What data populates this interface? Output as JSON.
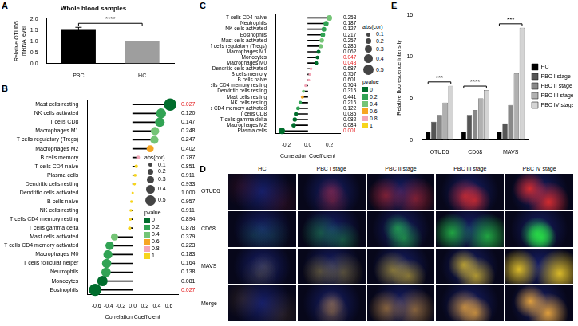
{
  "chart_data": [
    {
      "panel": "A",
      "type": "bar",
      "title": "Whole blood samples",
      "y_label": "Relative OTUD5 mRNA level",
      "categories": [
        "PBC",
        "HC"
      ],
      "values": [
        1.5,
        1.0
      ],
      "errors": [
        0.12,
        0
      ],
      "colors": [
        "#000000",
        "#9e9e9e"
      ],
      "ylim": [
        0,
        2
      ],
      "yticks": [
        {
          "value": 0,
          "label": "0.0"
        },
        {
          "value": 0.5,
          "label": "0.5"
        },
        {
          "value": 1,
          "label": "1.0"
        },
        {
          "value": 1.5,
          "label": "1.5"
        },
        {
          "value": 2,
          "label": "2.0"
        }
      ],
      "grid": false,
      "annotations": [
        {
          "text": "****",
          "from": "PBC",
          "to": "HC"
        }
      ]
    },
    {
      "panel": "B",
      "type": "lollipop",
      "orientation": "horizontal",
      "x_label": "Correlation Coefficient",
      "categories": [
        "Mast cells resting",
        "NK cells activated",
        "T cells CD8",
        "Macrophages M1",
        "T cells regulatory (Tregs)",
        "Macrophages M2",
        "B cells memory",
        "T cells CD4 naive",
        "Plasma cells",
        "Dendritic cells resting",
        "Dendritic cells activated",
        "B cells naive",
        "NK cells resting",
        "T cells CD4 memory resting",
        "T cells gamma delta",
        "Mast cells activated",
        "T cells CD4 memory activated",
        "Macrophages M0",
        "T cells follicular helper",
        "Neutrophils",
        "Monocytes",
        "Eosinophils"
      ],
      "values": [
        0.62,
        0.47,
        0.45,
        0.37,
        0.36,
        0.29,
        0.09,
        0.06,
        0.04,
        0.03,
        0.0,
        -0.02,
        -0.03,
        -0.04,
        -0.05,
        -0.3,
        -0.38,
        -0.41,
        -0.43,
        -0.44,
        -0.5,
        -0.62
      ],
      "colors": [
        "#006d2c",
        "#31a354",
        "#31a354",
        "#74c476",
        "#74c476",
        "#f6a623",
        "#f4a6b8",
        "#f7d51d",
        "#f7d51d",
        "#f7d51d",
        "#f7d51d",
        "#f7d51d",
        "#f7d51d",
        "#f7d51d",
        "#f7d51d",
        "#74c476",
        "#31a354",
        "#31a354",
        "#31a354",
        "#31a354",
        "#006d2c",
        "#006d2c"
      ],
      "p_value_labels": [
        "0.027",
        "0.120",
        "0.147",
        "0.248",
        "0.247",
        "0.402",
        "0.787",
        "0.851",
        "0.911",
        "0.933",
        "1.000",
        "0.957",
        "0.911",
        "0.894",
        "0.878",
        "0.379",
        "0.223",
        "0.183",
        "0.164",
        "0.138",
        "0.081",
        "0.027"
      ],
      "p_value_colors": [
        "#e41a1c",
        "#000000",
        "#000000",
        "#000000",
        "#000000",
        "#000000",
        "#000000",
        "#000000",
        "#000000",
        "#000000",
        "#000000",
        "#000000",
        "#000000",
        "#000000",
        "#000000",
        "#000000",
        "#000000",
        "#000000",
        "#000000",
        "#000000",
        "#000000",
        "#e41a1c"
      ],
      "xlim": [
        -0.75,
        0.75
      ],
      "xticks": [
        -0.6,
        -0.4,
        -0.2,
        {
          "value": 0,
          "label": "0.0"
        },
        0.2,
        0.4,
        0.6
      ],
      "grid": false,
      "size_legend": {
        "title": "abs(cor)",
        "values": [
          0.1,
          0.2,
          0.3,
          0.4,
          0.5
        ]
      },
      "color_legend": {
        "title": "pvalue",
        "values": [
          0,
          0.2,
          0.4,
          0.6,
          0.8,
          1
        ],
        "colors": [
          "#006d2c",
          "#31a354",
          "#74c476",
          "#f6a623",
          "#f4a6b8",
          "#f7d51d"
        ]
      }
    },
    {
      "panel": "C",
      "type": "lollipop",
      "orientation": "horizontal",
      "x_label": "Correlation Coefficient",
      "categories": [
        "T cells CD4 naive",
        "Neutrophils",
        "NK cells activated",
        "Eosinophils",
        "Mast cells activated",
        "T cells regulatory (Tregs)",
        "Macrophages M1",
        "Monocytes",
        "Macrophages M0",
        "Dendritic cells activated",
        "B cells memory",
        "B cells naive",
        "T cells CD4 memory resting",
        "Dendritic cells resting",
        "Mast cells resting",
        "NK cells resting",
        "T cells CD4 memory activated",
        "T cells CD8",
        "T cells gamma delta",
        "Macrophages M2",
        "Plasma cells"
      ],
      "values": [
        0.2,
        0.17,
        0.15,
        0.14,
        0.13,
        0.12,
        0.1,
        0.09,
        0.08,
        0.03,
        0.02,
        0.01,
        -0.02,
        -0.04,
        -0.05,
        -0.07,
        -0.09,
        -0.11,
        -0.12,
        -0.13,
        -0.24
      ],
      "colors": [
        "#74c476",
        "#31a354",
        "#31a354",
        "#31a354",
        "#74c476",
        "#74c476",
        "#006d2c",
        "#006d2c",
        "#006d2c",
        "#f4a6b8",
        "#f4a6b8",
        "#f4a6b8",
        "#f4a6b8",
        "#74c476",
        "#f6a623",
        "#31a354",
        "#31a354",
        "#006d2c",
        "#006d2c",
        "#006d2c",
        "#006d2c"
      ],
      "p_value_labels": [
        "0.253",
        "0.187",
        "0.127",
        "0.217",
        "0.257",
        "0.286",
        "0.062",
        "0.047",
        "0.048",
        "0.687",
        "0.757",
        "0.601",
        "0.764",
        "0.315",
        "0.441",
        "0.216",
        "0.122",
        "0.085",
        "0.082",
        "0.084",
        "0.001"
      ],
      "p_value_colors": [
        "#000000",
        "#000000",
        "#000000",
        "#000000",
        "#000000",
        "#000000",
        "#000000",
        "#e41a1c",
        "#e41a1c",
        "#000000",
        "#000000",
        "#000000",
        "#000000",
        "#000000",
        "#000000",
        "#000000",
        "#000000",
        "#000000",
        "#000000",
        "#000000",
        "#e41a1c"
      ],
      "xlim": [
        -0.3,
        0.3
      ],
      "xticks": [
        -0.2,
        {
          "value": 0,
          "label": "0.0"
        },
        0.2
      ],
      "grid": false,
      "size_legend": {
        "title": "abs(cor)",
        "values": [
          0.1,
          0.2,
          0.3,
          0.4,
          0.5
        ]
      },
      "color_legend": {
        "title": "pvalue",
        "values": [
          0,
          0.2,
          0.4,
          0.6,
          0.8,
          1
        ],
        "colors": [
          "#006d2c",
          "#31a354",
          "#74c476",
          "#f6a623",
          "#f4a6b8",
          "#f7d51d"
        ]
      }
    },
    {
      "panel": "E",
      "type": "bar",
      "y_label": "Relative fluorescence intensity",
      "categories": [
        "OTUD5",
        "CD68",
        "MAVS"
      ],
      "series": [
        {
          "name": "HC",
          "color": "#000000",
          "values": [
            1,
            1,
            1
          ]
        },
        {
          "name": "PBC I stage",
          "color": "#555555",
          "values": [
            2.2,
            3.0,
            2.0
          ]
        },
        {
          "name": "PBC II stage",
          "color": "#888888",
          "values": [
            3.0,
            3.6,
            4.2
          ]
        },
        {
          "name": "PBC III stage",
          "color": "#b0b0b0",
          "values": [
            4.5,
            5.0,
            8.0
          ]
        },
        {
          "name": "PBC IV stage",
          "color": "#d4d4d4",
          "values": [
            6.5,
            6.0,
            13.5
          ]
        }
      ],
      "ylim": [
        0,
        15
      ],
      "yticks": [
        0,
        5,
        10,
        15
      ],
      "grid": false,
      "legend": "right",
      "annotations": [
        {
          "category": "OTUD5",
          "text": "***"
        },
        {
          "category": "CD68",
          "text": "****"
        },
        {
          "category": "MAVS",
          "text": "***"
        }
      ]
    }
  ],
  "image_panel": {
    "panel": "D",
    "columns": [
      "HC",
      "PBC I stage",
      "PBC II stage",
      "PBC III stage",
      "PBC IV stage"
    ],
    "rows": [
      "OTUD5",
      "CD68",
      "MAVS",
      "Merge"
    ]
  }
}
